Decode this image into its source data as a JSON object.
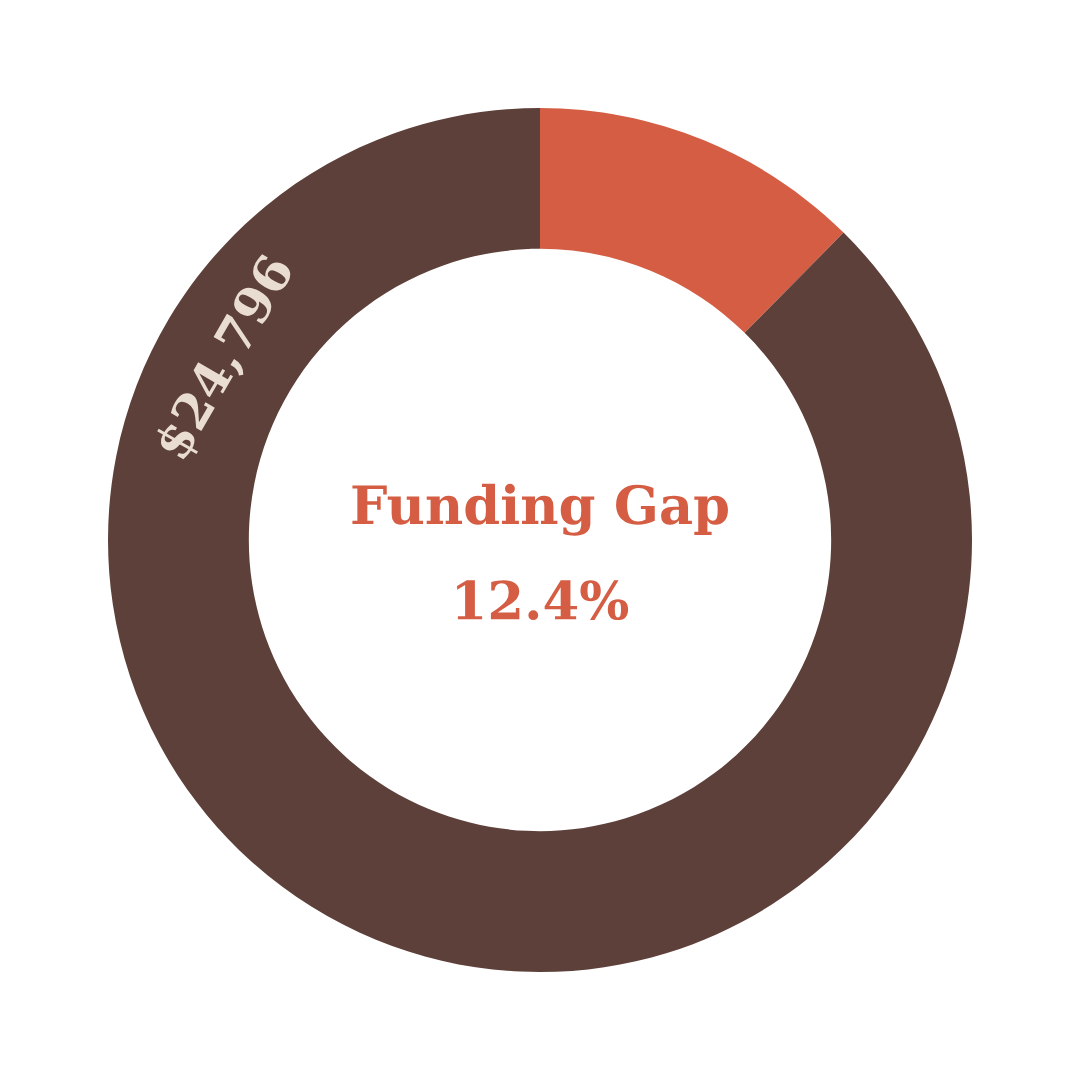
{
  "chart_data": {
    "type": "donut",
    "categories": [
      null,
      null
    ],
    "values": [
      12.4,
      87.6
    ],
    "colors": [
      "#d45d43",
      "#5e403a"
    ],
    "annotations": [
      "$24,796",
      "Funding Gap",
      "12.4%"
    ]
  }
}
